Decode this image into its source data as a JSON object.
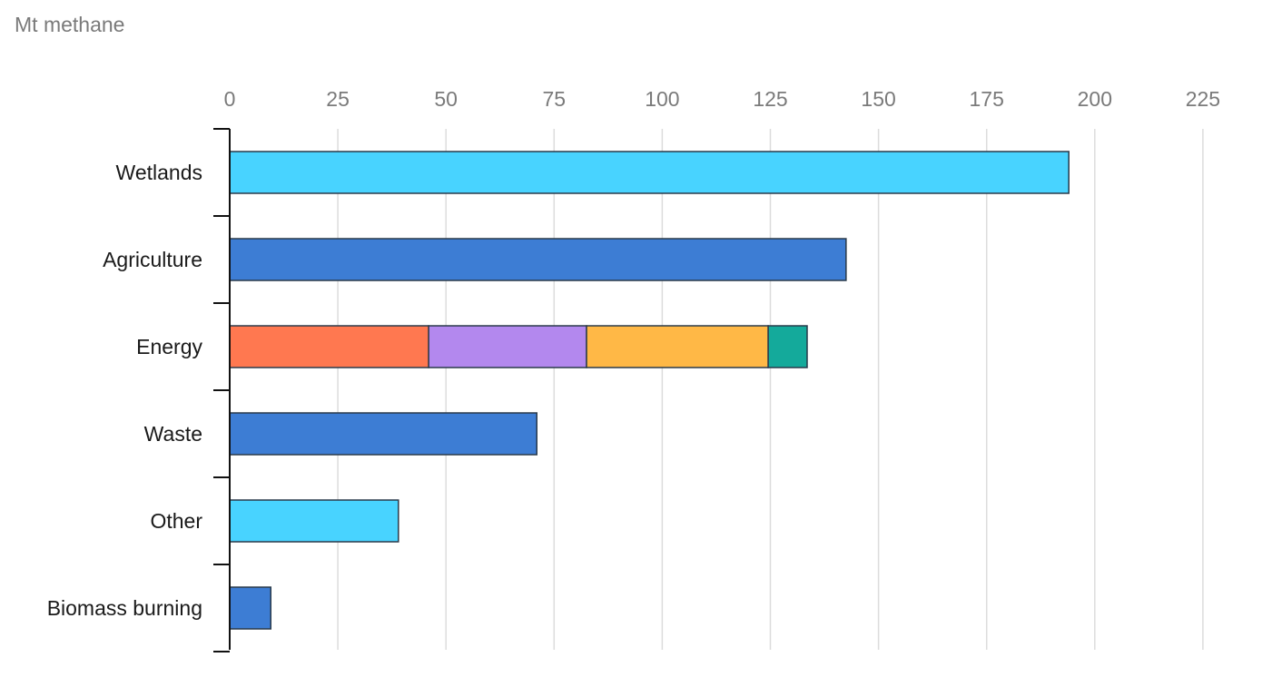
{
  "chart_data": {
    "type": "bar",
    "orientation": "horizontal",
    "stacked": true,
    "unit_label": "Mt methane",
    "title": "",
    "xlabel": "",
    "ylabel": "",
    "xlim": [
      0,
      225
    ],
    "xticks": [
      0,
      25,
      50,
      75,
      100,
      125,
      150,
      175,
      200,
      225
    ],
    "grid": true,
    "legend": "none",
    "categories": [
      "Wetlands",
      "Agriculture",
      "Energy",
      "Waste",
      "Other",
      "Biomass burning"
    ],
    "rows": [
      {
        "category": "Wetlands",
        "segments": [
          {
            "value": 194,
            "color": "#48d3ff"
          }
        ]
      },
      {
        "category": "Agriculture",
        "segments": [
          {
            "value": 142.5,
            "color": "#3d7dd4"
          }
        ]
      },
      {
        "category": "Energy",
        "segments": [
          {
            "value": 46,
            "color": "#ff7850"
          },
          {
            "value": 36.5,
            "color": "#b388ee"
          },
          {
            "value": 42,
            "color": "#ffb846"
          },
          {
            "value": 9,
            "color": "#14aa9b"
          }
        ]
      },
      {
        "category": "Waste",
        "segments": [
          {
            "value": 71,
            "color": "#3d7dd4"
          }
        ]
      },
      {
        "category": "Other",
        "segments": [
          {
            "value": 39,
            "color": "#48d3ff"
          }
        ]
      },
      {
        "category": "Biomass burning",
        "segments": [
          {
            "value": 9.5,
            "color": "#3d7dd4"
          }
        ]
      }
    ]
  }
}
